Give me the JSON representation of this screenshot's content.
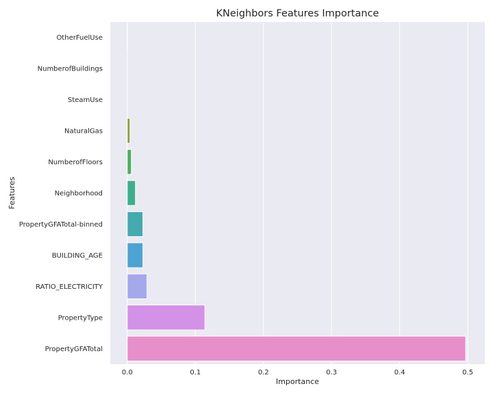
{
  "chart_data": {
    "type": "bar",
    "orientation": "horizontal",
    "title": "KNeighbors Features Importance",
    "xlabel": "Importance",
    "ylabel": "Features",
    "xlim": [
      -0.025,
      0.525
    ],
    "xticks": [
      0.0,
      0.1,
      0.2,
      0.3,
      0.4,
      0.5
    ],
    "xtick_labels": [
      "0.0",
      "0.1",
      "0.2",
      "0.3",
      "0.4",
      "0.5"
    ],
    "grid": true,
    "background": "#eaeaf2",
    "categories": [
      "OtherFuelUse",
      "NumberofBuildings",
      "SteamUse",
      "NaturalGas",
      "NumberofFloors",
      "Neighborhood",
      "PropertyGFATotal-binned",
      "BUILDING_AGE",
      "RATIO_ELECTRICITY",
      "PropertyType",
      "PropertyGFATotal"
    ],
    "values": [
      0.0003,
      0.0,
      0.0,
      0.004,
      0.006,
      0.012,
      0.023,
      0.023,
      0.029,
      0.114,
      0.497
    ],
    "colors": [
      "#e1812c",
      "#c0951d",
      "#a99b36",
      "#8d9f3a",
      "#4fad5b",
      "#3daf8d",
      "#44aab0",
      "#4da3d4",
      "#a3a9eb",
      "#d491e8",
      "#e78fcb"
    ]
  }
}
